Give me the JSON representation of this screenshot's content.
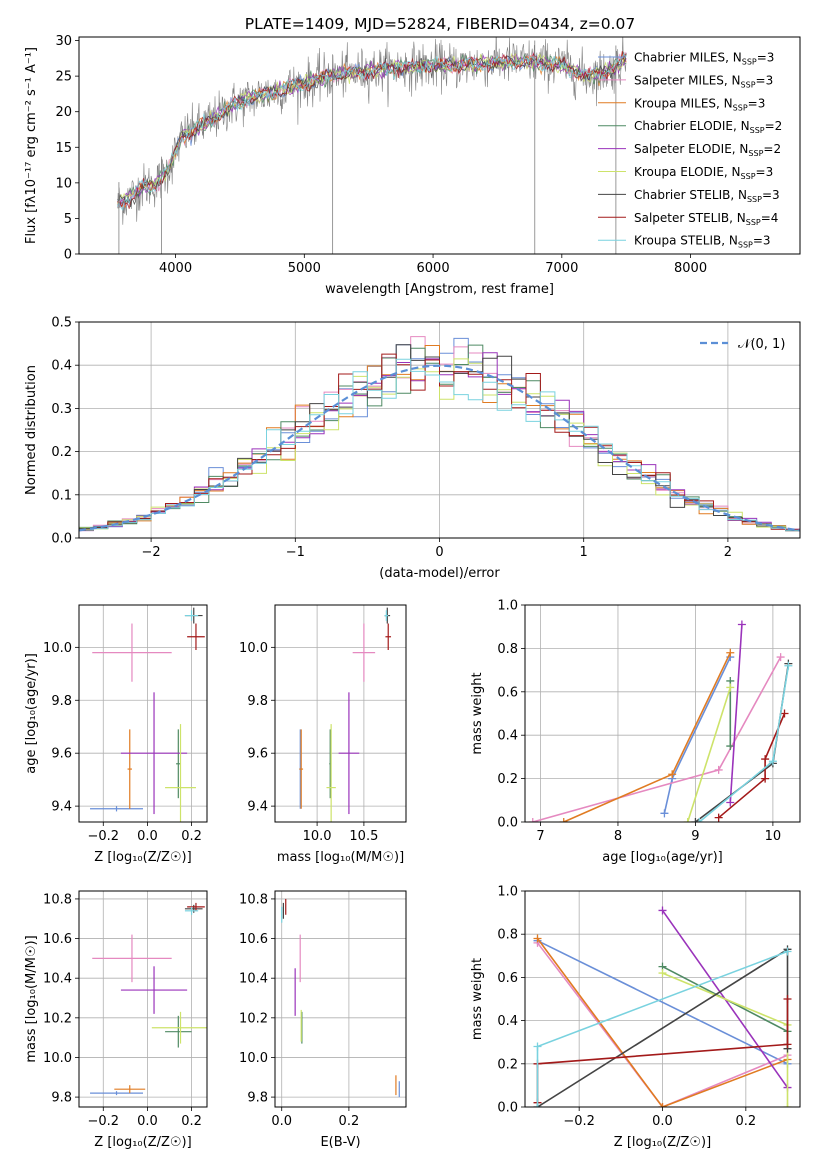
{
  "figure_title": "PLATE=1409, MJD=52824, FIBERID=0434, z=0.07",
  "colors": {
    "Chabrier MILES": "#6a8fd8",
    "Salpeter MILES": "#e589c0",
    "Kroupa MILES": "#e07b22",
    "Chabrier ELODIE": "#4f8a63",
    "Salpeter ELODIE": "#9a33bb",
    "Kroupa ELODIE": "#cde36a",
    "Chabrier STELIB": "#444444",
    "Salpeter STELIB": "#a31a1a",
    "Kroupa STELIB": "#79d2df",
    "gauss": "#5b8fd6",
    "data": "#808080"
  },
  "chart_data": [
    {
      "type": "line",
      "title": "PLATE=1409, MJD=52824, FIBERID=0434, z=0.07",
      "xlabel": "wavelength [Angstrom, rest frame]",
      "ylabel": "Flux [fλ10⁻¹⁷ erg cm⁻² s⁻¹ A⁻¹]",
      "xlim": [
        3250,
        8850
      ],
      "ylim": [
        0,
        30.5
      ],
      "xticks": [
        "4000",
        "5000",
        "6000",
        "7000",
        "8000"
      ],
      "yticks": [
        "0",
        "5",
        "10",
        "15",
        "20",
        "25",
        "30"
      ],
      "grid": false,
      "legend_position": "top-right",
      "legend": [
        {
          "label": "Chabrier MILES, N",
          "sub": "SSP",
          "suffix": "=3"
        },
        {
          "label": "Salpeter MILES, N",
          "sub": "SSP",
          "suffix": "=3"
        },
        {
          "label": "Kroupa MILES, N",
          "sub": "SSP",
          "suffix": "=3"
        },
        {
          "label": "Chabrier ELODIE, N",
          "sub": "SSP",
          "suffix": "=2"
        },
        {
          "label": "Salpeter ELODIE, N",
          "sub": "SSP",
          "suffix": "=2"
        },
        {
          "label": "Kroupa ELODIE, N",
          "sub": "SSP",
          "suffix": "=3"
        },
        {
          "label": "Chabrier STELIB, N",
          "sub": "SSP",
          "suffix": "=3"
        },
        {
          "label": "Salpeter STELIB, N",
          "sub": "SSP",
          "suffix": "=4"
        },
        {
          "label": "Kroupa STELIB, N",
          "sub": "SSP",
          "suffix": "=3"
        }
      ],
      "continuum": {
        "x": [
          3550,
          3650,
          3750,
          3850,
          3950,
          4050,
          4150,
          4300,
          4450,
          4600,
          4800,
          5000,
          5200,
          5400,
          5600,
          5800,
          6000,
          6200,
          6400,
          6600,
          6800,
          7000,
          7200,
          7400,
          7500
        ],
        "y": [
          7.0,
          8.0,
          9.5,
          9.8,
          12.0,
          16.5,
          17.5,
          19.0,
          21.0,
          22.0,
          23.0,
          24.0,
          25.0,
          25.5,
          26.0,
          26.3,
          26.5,
          26.5,
          26.8,
          27.0,
          27.0,
          26.5,
          25.0,
          26.0,
          27.5
        ]
      },
      "spikes": [
        {
          "x": 3560,
          "y": 0
        },
        {
          "x": 3890,
          "y": 0
        },
        {
          "x": 5220,
          "y": 0
        },
        {
          "x": 6790,
          "y": 0
        },
        {
          "x": 7420,
          "y": 0
        }
      ]
    },
    {
      "type": "line",
      "xlabel": "(data-model)/error",
      "ylabel": "Normed distribution",
      "xlim": [
        -2.5,
        2.5
      ],
      "ylim": [
        0,
        0.5
      ],
      "xticks": [
        "−2",
        "−1",
        "0",
        "1",
        "2"
      ],
      "yticks": [
        "0.0",
        "0.1",
        "0.2",
        "0.3",
        "0.4",
        "0.5"
      ],
      "grid": true,
      "legend_position": "top-right",
      "legend_label": "𝒩(0, 1)",
      "hist_bins": 50
    },
    {
      "type": "scatter",
      "xlabel": "Z [log₁₀(Z/Z☉)]",
      "ylabel": "age  [log₁₀(age/yr)]",
      "xlim": [
        -0.31,
        0.27
      ],
      "ylim": [
        9.34,
        10.16
      ],
      "xticks": [
        "−0.2",
        "0.0",
        "0.2"
      ],
      "yticks": [
        "9.4",
        "9.6",
        "9.8",
        "10.0"
      ],
      "grid": true,
      "points": [
        {
          "model": "Chabrier MILES",
          "x": -0.14,
          "xerr": 0.12,
          "y": 9.39,
          "yerr": 0.01
        },
        {
          "model": "Salpeter MILES",
          "x": -0.07,
          "xerr": 0.18,
          "y": 9.98,
          "yerr": 0.11
        },
        {
          "model": "Kroupa MILES",
          "x": -0.08,
          "xerr": 0.01,
          "y": 9.54,
          "yerr": 0.15
        },
        {
          "model": "Chabrier ELODIE",
          "x": 0.14,
          "xerr": 0.01,
          "y": 9.56,
          "yerr": 0.13
        },
        {
          "model": "Salpeter ELODIE",
          "x": 0.03,
          "xerr": 0.15,
          "y": 9.6,
          "yerr": 0.23
        },
        {
          "model": "Kroupa ELODIE",
          "x": 0.15,
          "xerr": 0.07,
          "y": 9.47,
          "yerr": 0.24
        },
        {
          "model": "Chabrier STELIB",
          "x": 0.21,
          "xerr": 0.04,
          "y": 10.12,
          "yerr": 0.03
        },
        {
          "model": "Salpeter STELIB",
          "x": 0.22,
          "xerr": 0.04,
          "y": 10.04,
          "yerr": 0.05
        },
        {
          "model": "Kroupa STELIB",
          "x": 0.2,
          "xerr": 0.03,
          "y": 10.12,
          "yerr": 0.02
        }
      ]
    },
    {
      "type": "scatter",
      "xlabel": "mass [log₁₀(M/M☉)]",
      "xlim": [
        9.55,
        10.95
      ],
      "ylim": [
        9.34,
        10.16
      ],
      "xticks": [
        "10.0",
        "10.5"
      ],
      "yticks": [
        "9.4",
        "9.6",
        "9.8",
        "10.0"
      ],
      "grid": true,
      "points": [
        {
          "model": "Chabrier MILES",
          "x": 9.82,
          "xerr": 0.01,
          "y": 9.54,
          "yerr": 0.15
        },
        {
          "model": "Salpeter MILES",
          "x": 10.5,
          "xerr": 0.12,
          "y": 9.98,
          "yerr": 0.11
        },
        {
          "model": "Kroupa MILES",
          "x": 9.83,
          "xerr": 0.02,
          "y": 9.54,
          "yerr": 0.15
        },
        {
          "model": "Chabrier ELODIE",
          "x": 10.14,
          "xerr": 0.01,
          "y": 9.56,
          "yerr": 0.13
        },
        {
          "model": "Salpeter ELODIE",
          "x": 10.34,
          "xerr": 0.11,
          "y": 9.6,
          "yerr": 0.23
        },
        {
          "model": "Kroupa ELODIE",
          "x": 10.15,
          "xerr": 0.05,
          "y": 9.47,
          "yerr": 0.24
        },
        {
          "model": "Chabrier STELIB",
          "x": 10.75,
          "xerr": 0.03,
          "y": 10.12,
          "yerr": 0.03
        },
        {
          "model": "Salpeter STELIB",
          "x": 10.76,
          "xerr": 0.03,
          "y": 10.04,
          "yerr": 0.05
        },
        {
          "model": "Kroupa STELIB",
          "x": 10.74,
          "xerr": 0.02,
          "y": 10.12,
          "yerr": 0.02
        }
      ]
    },
    {
      "type": "line",
      "xlabel": "age  [log₁₀(age/yr)]",
      "ylabel": "mass weight",
      "xlim": [
        6.8,
        10.35
      ],
      "ylim": [
        0,
        1.0
      ],
      "xticks": [
        "7",
        "8",
        "9",
        "10"
      ],
      "yticks": [
        "0.0",
        "0.2",
        "0.4",
        "0.6",
        "0.8",
        "1.0"
      ],
      "grid": true,
      "series": [
        {
          "model": "Chabrier MILES",
          "x": [
            8.6,
            8.7,
            9.45
          ],
          "y": [
            0.04,
            0.2,
            0.76
          ]
        },
        {
          "model": "Salpeter MILES",
          "x": [
            6.9,
            9.3,
            10.1
          ],
          "y": [
            0.0,
            0.24,
            0.76
          ]
        },
        {
          "model": "Kroupa MILES",
          "x": [
            7.3,
            8.7,
            9.45
          ],
          "y": [
            0.0,
            0.22,
            0.78
          ]
        },
        {
          "model": "Chabrier ELODIE",
          "x": [
            9.45,
            9.45
          ],
          "y": [
            0.35,
            0.65
          ]
        },
        {
          "model": "Salpeter ELODIE",
          "x": [
            9.45,
            9.6
          ],
          "y": [
            0.09,
            0.91
          ]
        },
        {
          "model": "Kroupa ELODIE",
          "x": [
            8.9,
            9.45
          ],
          "y": [
            0.0,
            0.62
          ]
        },
        {
          "model": "Chabrier STELIB",
          "x": [
            9.0,
            10.0,
            10.2
          ],
          "y": [
            0.0,
            0.27,
            0.73
          ]
        },
        {
          "model": "Salpeter STELIB",
          "x": [
            9.3,
            9.9,
            9.9,
            10.15
          ],
          "y": [
            0.02,
            0.2,
            0.29,
            0.5
          ]
        },
        {
          "model": "Kroupa STELIB",
          "x": [
            9.05,
            10.0,
            10.2
          ],
          "y": [
            0.0,
            0.28,
            0.72
          ]
        }
      ]
    },
    {
      "type": "scatter",
      "xlabel": "Z [log₁₀(Z/Z☉)]",
      "ylabel": "mass [log₁₀(M/M☉)]",
      "xlim": [
        -0.31,
        0.27
      ],
      "ylim": [
        9.75,
        10.84
      ],
      "xticks": [
        "−0.2",
        "0.0",
        "0.2"
      ],
      "yticks": [
        "9.8",
        "10.0",
        "10.2",
        "10.4",
        "10.6",
        "10.8"
      ],
      "grid": true,
      "points": [
        {
          "model": "Chabrier MILES",
          "x": -0.14,
          "xerr": 0.12,
          "y": 9.82,
          "yerr": 0.01
        },
        {
          "model": "Salpeter MILES",
          "x": -0.07,
          "xerr": 0.18,
          "y": 10.5,
          "yerr": 0.12
        },
        {
          "model": "Kroupa MILES",
          "x": -0.08,
          "xerr": 0.07,
          "y": 9.84,
          "yerr": 0.02
        },
        {
          "model": "Chabrier ELODIE",
          "x": 0.14,
          "xerr": 0.06,
          "y": 10.13,
          "yerr": 0.08
        },
        {
          "model": "Salpeter ELODIE",
          "x": 0.03,
          "xerr": 0.15,
          "y": 10.34,
          "yerr": 0.12
        },
        {
          "model": "Kroupa ELODIE",
          "x": 0.15,
          "xerr": 0.13,
          "y": 10.15,
          "yerr": 0.08
        },
        {
          "model": "Chabrier STELIB",
          "x": 0.21,
          "xerr": 0.04,
          "y": 10.75,
          "yerr": 0.02
        },
        {
          "model": "Salpeter STELIB",
          "x": 0.22,
          "xerr": 0.04,
          "y": 10.76,
          "yerr": 0.02
        },
        {
          "model": "Kroupa STELIB",
          "x": 0.2,
          "xerr": 0.03,
          "y": 10.74,
          "yerr": 0.02
        }
      ]
    },
    {
      "type": "scatter",
      "xlabel": "E(B-V)",
      "xlim": [
        -0.02,
        0.37
      ],
      "ylim": [
        9.75,
        10.84
      ],
      "xticks": [
        "0.0",
        "0.2"
      ],
      "yticks": [
        "9.8",
        "10.0",
        "10.2",
        "10.4",
        "10.6",
        "10.8"
      ],
      "grid": true,
      "points": [
        {
          "model": "Chabrier MILES",
          "x": 0.35,
          "xerr": 0.0,
          "y": 9.84,
          "yerr": 0.04
        },
        {
          "model": "Salpeter MILES",
          "x": 0.055,
          "xerr": 0.0,
          "y": 10.5,
          "yerr": 0.12
        },
        {
          "model": "Kroupa MILES",
          "x": 0.34,
          "xerr": 0.0,
          "y": 9.86,
          "yerr": 0.05
        },
        {
          "model": "Chabrier ELODIE",
          "x": 0.06,
          "xerr": 0.0,
          "y": 10.15,
          "yerr": 0.08
        },
        {
          "model": "Salpeter ELODIE",
          "x": 0.04,
          "xerr": 0.0,
          "y": 10.33,
          "yerr": 0.12
        },
        {
          "model": "Kroupa ELODIE",
          "x": 0.058,
          "xerr": 0.0,
          "y": 10.16,
          "yerr": 0.08
        },
        {
          "model": "Chabrier STELIB",
          "x": 0.005,
          "xerr": 0.0,
          "y": 10.74,
          "yerr": 0.04
        },
        {
          "model": "Salpeter STELIB",
          "x": 0.012,
          "xerr": 0.0,
          "y": 10.76,
          "yerr": 0.04
        },
        {
          "model": "Kroupa STELIB",
          "x": 0.0,
          "xerr": 0.0,
          "y": 10.72,
          "yerr": 0.04
        }
      ]
    },
    {
      "type": "line",
      "xlabel": "Z [log₁₀(Z/Z☉)]",
      "ylabel": "mass weight",
      "xlim": [
        -0.33,
        0.33
      ],
      "ylim": [
        0,
        1.0
      ],
      "xticks": [
        "−0.2",
        "0.0",
        "0.2"
      ],
      "yticks": [
        "0.0",
        "0.2",
        "0.4",
        "0.6",
        "0.8",
        "1.0"
      ],
      "grid": true,
      "series": [
        {
          "model": "Chabrier MILES",
          "x": [
            -0.3,
            0.3
          ],
          "y": [
            0.77,
            0.2
          ]
        },
        {
          "model": "Salpeter MILES",
          "x": [
            -0.3,
            0.0,
            0.3
          ],
          "y": [
            0.76,
            0.0,
            0.24
          ]
        },
        {
          "model": "Kroupa MILES",
          "x": [
            -0.3,
            0.0,
            0.3
          ],
          "y": [
            0.78,
            0.0,
            0.22
          ]
        },
        {
          "model": "Chabrier ELODIE",
          "x": [
            0.0,
            0.3
          ],
          "y": [
            0.65,
            0.35
          ]
        },
        {
          "model": "Salpeter ELODIE",
          "x": [
            0.0,
            0.3
          ],
          "y": [
            0.91,
            0.09
          ]
        },
        {
          "model": "Kroupa ELODIE",
          "x": [
            0.0,
            0.3,
            0.3
          ],
          "y": [
            0.62,
            0.38,
            0.0
          ]
        },
        {
          "model": "Chabrier STELIB",
          "x": [
            -0.3,
            0.3,
            0.3
          ],
          "y": [
            0.0,
            0.73,
            0.27
          ]
        },
        {
          "model": "Salpeter STELIB",
          "x": [
            -0.3,
            -0.3,
            0.3,
            0.3
          ],
          "y": [
            0.02,
            0.2,
            0.29,
            0.5
          ]
        },
        {
          "model": "Kroupa STELIB",
          "x": [
            -0.3,
            -0.3,
            0.3
          ],
          "y": [
            0.0,
            0.28,
            0.72
          ]
        }
      ]
    }
  ]
}
